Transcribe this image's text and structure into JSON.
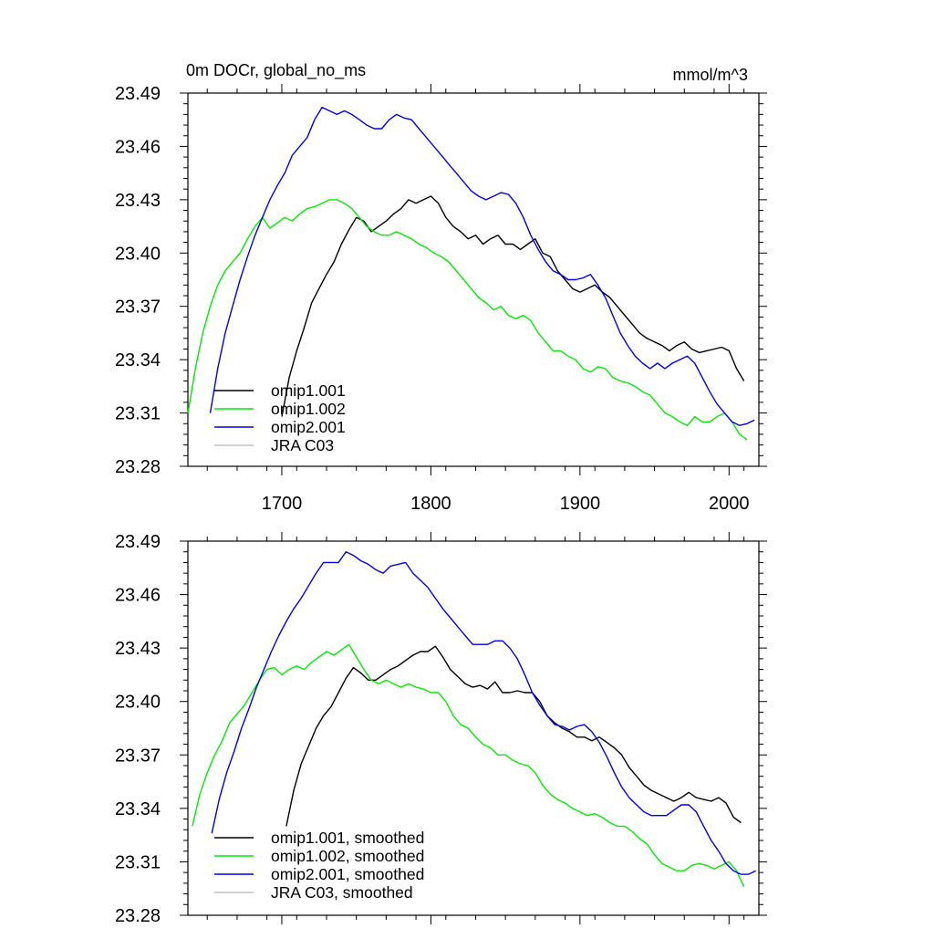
{
  "chart_data": [
    {
      "type": "line",
      "title_left": "0m DOCr, global_no_ms",
      "title_right": "mmol/m^3",
      "xlim": [
        1637,
        2020
      ],
      "ylim": [
        23.28,
        23.49
      ],
      "yticks": [
        "23.49",
        "23.46",
        "23.43",
        "23.40",
        "23.37",
        "23.34",
        "23.31",
        "23.28"
      ],
      "xticks": [
        "1700",
        "1800",
        "1900",
        "2000"
      ],
      "show_xtick_labels": true,
      "grid": false,
      "legend_position": "bottom-left",
      "series": [
        {
          "name": "omip1.001",
          "color": "#000000",
          "x": [
            1700,
            1705,
            1710,
            1715,
            1720,
            1725,
            1730,
            1735,
            1740,
            1745,
            1750,
            1755,
            1760,
            1765,
            1770,
            1775,
            1780,
            1785,
            1790,
            1795,
            1800,
            1805,
            1810,
            1815,
            1820,
            1825,
            1830,
            1835,
            1840,
            1845,
            1850,
            1855,
            1860,
            1865,
            1870,
            1875,
            1880,
            1885,
            1890,
            1895,
            1900,
            1905,
            1910,
            1915,
            1920,
            1925,
            1930,
            1935,
            1940,
            1945,
            1950,
            1955,
            1960,
            1965,
            1970,
            1975,
            1980,
            1985,
            1990,
            1995,
            2000,
            2005,
            2010
          ],
          "y": [
            23.308,
            23.33,
            23.345,
            23.358,
            23.372,
            23.38,
            23.388,
            23.395,
            23.405,
            23.413,
            23.42,
            23.418,
            23.412,
            23.415,
            23.418,
            23.422,
            23.425,
            23.43,
            23.428,
            23.43,
            23.432,
            23.428,
            23.42,
            23.415,
            23.412,
            23.408,
            23.41,
            23.405,
            23.408,
            23.41,
            23.405,
            23.405,
            23.402,
            23.405,
            23.408,
            23.4,
            23.398,
            23.39,
            23.385,
            23.38,
            23.378,
            23.38,
            23.382,
            23.378,
            23.375,
            23.37,
            23.365,
            23.36,
            23.355,
            23.352,
            23.35,
            23.348,
            23.345,
            23.348,
            23.35,
            23.346,
            23.344,
            23.345,
            23.346,
            23.347,
            23.345,
            23.335,
            23.328
          ]
        },
        {
          "name": "omip1.002",
          "color": "#00ee00",
          "x": [
            1637,
            1642,
            1647,
            1652,
            1657,
            1662,
            1667,
            1672,
            1677,
            1682,
            1687,
            1692,
            1697,
            1702,
            1707,
            1712,
            1717,
            1722,
            1727,
            1732,
            1737,
            1742,
            1747,
            1752,
            1757,
            1762,
            1767,
            1772,
            1777,
            1782,
            1787,
            1792,
            1797,
            1802,
            1807,
            1812,
            1817,
            1822,
            1827,
            1832,
            1837,
            1842,
            1847,
            1852,
            1857,
            1862,
            1867,
            1872,
            1877,
            1882,
            1887,
            1892,
            1897,
            1902,
            1907,
            1912,
            1917,
            1922,
            1927,
            1932,
            1937,
            1942,
            1947,
            1952,
            1957,
            1962,
            1967,
            1972,
            1977,
            1982,
            1987,
            1992,
            1997,
            2002,
            2007,
            2012
          ],
          "y": [
            23.31,
            23.335,
            23.355,
            23.37,
            23.382,
            23.39,
            23.395,
            23.4,
            23.408,
            23.415,
            23.42,
            23.414,
            23.417,
            23.42,
            23.418,
            23.422,
            23.425,
            23.426,
            23.428,
            23.43,
            23.43,
            23.428,
            23.425,
            23.42,
            23.415,
            23.412,
            23.41,
            23.41,
            23.412,
            23.41,
            23.408,
            23.405,
            23.403,
            23.4,
            23.398,
            23.395,
            23.39,
            23.385,
            23.38,
            23.375,
            23.372,
            23.368,
            23.37,
            23.365,
            23.363,
            23.365,
            23.362,
            23.355,
            23.35,
            23.345,
            23.345,
            23.342,
            23.34,
            23.335,
            23.333,
            23.336,
            23.335,
            23.33,
            23.328,
            23.327,
            23.325,
            23.322,
            23.32,
            23.315,
            23.31,
            23.308,
            23.305,
            23.303,
            23.308,
            23.305,
            23.305,
            23.308,
            23.31,
            23.305,
            23.298,
            23.295
          ]
        },
        {
          "name": "omip2.001",
          "color": "#0000ee",
          "x": [
            1652,
            1657,
            1662,
            1667,
            1672,
            1677,
            1682,
            1687,
            1692,
            1697,
            1702,
            1707,
            1712,
            1717,
            1722,
            1727,
            1732,
            1737,
            1742,
            1747,
            1752,
            1757,
            1762,
            1767,
            1772,
            1777,
            1782,
            1787,
            1792,
            1797,
            1802,
            1807,
            1812,
            1817,
            1822,
            1827,
            1832,
            1837,
            1842,
            1847,
            1852,
            1857,
            1862,
            1867,
            1872,
            1877,
            1882,
            1887,
            1892,
            1897,
            1902,
            1907,
            1912,
            1917,
            1922,
            1927,
            1932,
            1937,
            1942,
            1947,
            1952,
            1957,
            1962,
            1967,
            1972,
            1977,
            1982,
            1987,
            1992,
            1997,
            2002,
            2007,
            2012,
            2017
          ],
          "y": [
            23.31,
            23.335,
            23.355,
            23.37,
            23.385,
            23.398,
            23.41,
            23.42,
            23.43,
            23.438,
            23.445,
            23.455,
            23.46,
            23.465,
            23.475,
            23.482,
            23.48,
            23.478,
            23.48,
            23.478,
            23.475,
            23.472,
            23.47,
            23.47,
            23.475,
            23.478,
            23.476,
            23.475,
            23.47,
            23.465,
            23.46,
            23.455,
            23.45,
            23.445,
            23.44,
            23.435,
            23.432,
            23.43,
            23.432,
            23.434,
            23.433,
            23.428,
            23.42,
            23.41,
            23.402,
            23.395,
            23.39,
            23.388,
            23.385,
            23.385,
            23.386,
            23.388,
            23.382,
            23.375,
            23.365,
            23.355,
            23.348,
            23.342,
            23.338,
            23.335,
            23.338,
            23.335,
            23.338,
            23.34,
            23.342,
            23.338,
            23.33,
            23.322,
            23.315,
            23.31,
            23.305,
            23.303,
            23.304,
            23.306
          ]
        }
      ]
    },
    {
      "type": "line",
      "title_left": "",
      "title_right": "",
      "xlim": [
        1637,
        2020
      ],
      "ylim": [
        23.28,
        23.49
      ],
      "yticks": [
        "23.49",
        "23.46",
        "23.43",
        "23.40",
        "23.37",
        "23.34",
        "23.31",
        "23.28"
      ],
      "xticks": [
        "1700",
        "1800",
        "1900",
        "2000"
      ],
      "show_xtick_labels": false,
      "grid": false,
      "legend_position": "bottom-left",
      "series": [
        {
          "name": "omip1.001, smoothed",
          "color": "#000000",
          "x": [
            1703,
            1708,
            1713,
            1718,
            1723,
            1728,
            1733,
            1738,
            1743,
            1748,
            1753,
            1758,
            1763,
            1768,
            1773,
            1778,
            1783,
            1788,
            1793,
            1798,
            1803,
            1808,
            1813,
            1818,
            1823,
            1828,
            1833,
            1838,
            1843,
            1848,
            1853,
            1858,
            1863,
            1868,
            1873,
            1878,
            1883,
            1888,
            1893,
            1898,
            1903,
            1908,
            1913,
            1918,
            1923,
            1928,
            1933,
            1938,
            1943,
            1948,
            1953,
            1958,
            1963,
            1968,
            1973,
            1978,
            1983,
            1988,
            1993,
            1998,
            2003,
            2008
          ],
          "y": [
            23.33,
            23.35,
            23.365,
            23.375,
            23.385,
            23.392,
            23.397,
            23.405,
            23.413,
            23.419,
            23.416,
            23.412,
            23.412,
            23.415,
            23.418,
            23.42,
            23.423,
            23.426,
            23.428,
            23.428,
            23.431,
            23.425,
            23.418,
            23.414,
            23.41,
            23.408,
            23.409,
            23.407,
            23.411,
            23.405,
            23.405,
            23.406,
            23.405,
            23.405,
            23.4,
            23.392,
            23.388,
            23.385,
            23.383,
            23.38,
            23.38,
            23.378,
            23.38,
            23.377,
            23.374,
            23.37,
            23.363,
            23.358,
            23.353,
            23.35,
            23.348,
            23.346,
            23.344,
            23.346,
            23.349,
            23.346,
            23.345,
            23.344,
            23.346,
            23.343,
            23.335,
            23.332
          ]
        },
        {
          "name": "omip1.002, smoothed",
          "color": "#00ee00",
          "x": [
            1640,
            1645,
            1650,
            1655,
            1660,
            1665,
            1670,
            1675,
            1680,
            1685,
            1690,
            1695,
            1700,
            1705,
            1710,
            1715,
            1720,
            1725,
            1730,
            1735,
            1740,
            1745,
            1750,
            1755,
            1760,
            1765,
            1770,
            1775,
            1780,
            1785,
            1790,
            1795,
            1800,
            1805,
            1810,
            1815,
            1820,
            1825,
            1830,
            1835,
            1840,
            1845,
            1850,
            1855,
            1860,
            1865,
            1870,
            1875,
            1880,
            1885,
            1890,
            1895,
            1900,
            1905,
            1910,
            1915,
            1920,
            1925,
            1930,
            1935,
            1940,
            1945,
            1950,
            1955,
            1960,
            1965,
            1970,
            1975,
            1980,
            1985,
            1990,
            1995,
            2000,
            2005,
            2010
          ],
          "y": [
            23.33,
            23.348,
            23.36,
            23.37,
            23.378,
            23.388,
            23.393,
            23.398,
            23.405,
            23.412,
            23.418,
            23.419,
            23.415,
            23.418,
            23.42,
            23.418,
            23.422,
            23.425,
            23.428,
            23.426,
            23.429,
            23.432,
            23.425,
            23.418,
            23.412,
            23.41,
            23.412,
            23.41,
            23.408,
            23.41,
            23.408,
            23.407,
            23.405,
            23.405,
            23.4,
            23.392,
            23.387,
            23.385,
            23.38,
            23.376,
            23.374,
            23.37,
            23.37,
            23.367,
            23.365,
            23.364,
            23.36,
            23.353,
            23.348,
            23.345,
            23.343,
            23.34,
            23.338,
            23.336,
            23.337,
            23.335,
            23.332,
            23.33,
            23.33,
            23.327,
            23.323,
            23.32,
            23.314,
            23.309,
            23.307,
            23.305,
            23.305,
            23.308,
            23.309,
            23.308,
            23.306,
            23.308,
            23.31,
            23.305,
            23.296
          ]
        },
        {
          "name": "omip2.001, smoothed",
          "color": "#0000ee",
          "x": [
            1653,
            1658,
            1663,
            1668,
            1673,
            1678,
            1683,
            1688,
            1693,
            1698,
            1703,
            1708,
            1713,
            1718,
            1723,
            1728,
            1733,
            1738,
            1743,
            1748,
            1753,
            1758,
            1763,
            1768,
            1773,
            1778,
            1783,
            1788,
            1793,
            1798,
            1803,
            1808,
            1813,
            1818,
            1823,
            1828,
            1833,
            1838,
            1843,
            1848,
            1853,
            1858,
            1863,
            1868,
            1873,
            1878,
            1883,
            1888,
            1893,
            1898,
            1903,
            1908,
            1913,
            1918,
            1923,
            1928,
            1933,
            1938,
            1943,
            1948,
            1953,
            1958,
            1963,
            1968,
            1973,
            1978,
            1983,
            1988,
            1993,
            1998,
            2003,
            2008,
            2013,
            2018
          ],
          "y": [
            23.326,
            23.345,
            23.36,
            23.372,
            23.385,
            23.396,
            23.408,
            23.418,
            23.428,
            23.437,
            23.445,
            23.452,
            23.458,
            23.465,
            23.472,
            23.478,
            23.478,
            23.478,
            23.484,
            23.482,
            23.479,
            23.477,
            23.474,
            23.472,
            23.476,
            23.477,
            23.478,
            23.472,
            23.468,
            23.464,
            23.458,
            23.452,
            23.447,
            23.442,
            23.437,
            23.432,
            23.432,
            23.432,
            23.434,
            23.434,
            23.43,
            23.424,
            23.415,
            23.405,
            23.398,
            23.392,
            23.387,
            23.386,
            23.384,
            23.386,
            23.387,
            23.383,
            23.377,
            23.369,
            23.36,
            23.352,
            23.346,
            23.342,
            23.338,
            23.336,
            23.336,
            23.336,
            23.339,
            23.342,
            23.342,
            23.338,
            23.33,
            23.322,
            23.316,
            23.309,
            23.305,
            23.303,
            23.303,
            23.305
          ]
        }
      ]
    }
  ],
  "legends": [
    {
      "items": [
        {
          "label": "omip1.001",
          "color": "#000000"
        },
        {
          "label": "omip1.002",
          "color": "#00ee00"
        },
        {
          "label": "omip2.001",
          "color": "#0000ee"
        },
        {
          "label": "JRA C03",
          "color": "#c0c0c0"
        }
      ]
    },
    {
      "items": [
        {
          "label": "omip1.001, smoothed",
          "color": "#000000"
        },
        {
          "label": "omip1.002, smoothed",
          "color": "#00ee00"
        },
        {
          "label": "omip2.001, smoothed",
          "color": "#0000ee"
        },
        {
          "label": "JRA C03, smoothed",
          "color": "#c0c0c0"
        }
      ]
    }
  ]
}
